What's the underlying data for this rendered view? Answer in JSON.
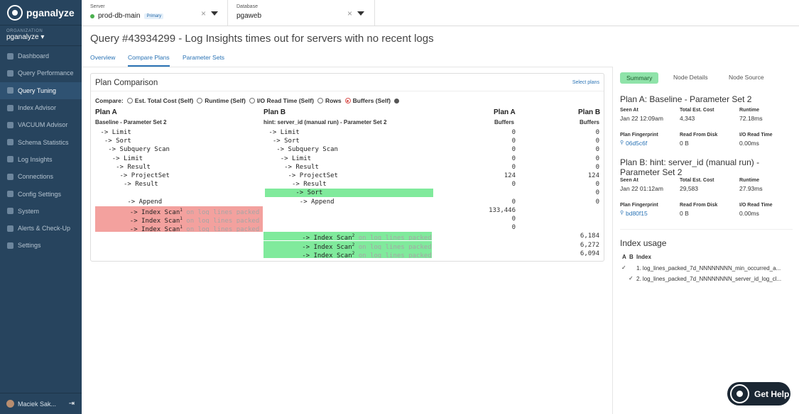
{
  "app": {
    "name": "pganalyze"
  },
  "org": {
    "label": "ORGANIZATION",
    "value": "pganalyze"
  },
  "nav": [
    "Dashboard",
    "Query Performance",
    "Query Tuning",
    "Index Advisor",
    "VACUUM Advisor",
    "Schema Statistics",
    "Log Insights",
    "Connections",
    "Config Settings",
    "System",
    "Alerts & Check-Up",
    "Settings"
  ],
  "user": {
    "name": "Maciek Sak..."
  },
  "server": {
    "label": "Server",
    "value": "prod-db-main",
    "badge": "Primary",
    "status_color": "#4bb04f"
  },
  "database": {
    "label": "Database",
    "value": "pgaweb"
  },
  "page": {
    "title": "Query #43934299 - Log Insights times out for servers with no recent logs"
  },
  "tabs": [
    "Overview",
    "Compare Plans",
    "Parameter Sets"
  ],
  "card": {
    "title": "Plan Comparison",
    "select_plans": "Select plans"
  },
  "compare": {
    "label": "Compare:",
    "options": [
      "Est. Total Cost (Self)",
      "Runtime (Self)",
      "I/O Read Time (Self)",
      "Rows",
      "Buffers (Self)"
    ],
    "selected": "Buffers (Self)"
  },
  "planA": {
    "header": "Plan A",
    "sub": "Baseline - Parameter Set 2"
  },
  "planB": {
    "header": "Plan B",
    "sub": "hint: server_id (manual run) - Parameter Set 2"
  },
  "numcols": {
    "a": "Plan A",
    "b": "Plan B",
    "sub": "Buffers"
  },
  "index_name": "log_lines_packed_7d",
  "on_word": "on",
  "arrow": "->",
  "plan_a_rows": [
    {
      "indent": 0,
      "node": "Limit",
      "a": "0",
      "b": "0"
    },
    {
      "indent": 1,
      "node": "Sort",
      "a": "0",
      "b": "0"
    },
    {
      "indent": 2,
      "node": "Subquery Scan",
      "a": "0",
      "b": "0"
    },
    {
      "indent": 3,
      "node": "Limit",
      "a": "0",
      "b": "0"
    },
    {
      "indent": 4,
      "node": "Result",
      "a": "0",
      "b": "0"
    },
    {
      "indent": 5,
      "node": "ProjectSet",
      "a": "124",
      "b": "124"
    },
    {
      "indent": 6,
      "node": "Result",
      "a": "0",
      "b": "0"
    }
  ],
  "plan_b_sort": {
    "node": "Sort",
    "b": "0"
  },
  "append": {
    "node": "Append",
    "a": "0",
    "b": "0"
  },
  "plan_a_scans": [
    {
      "node": "Index Scan",
      "sup": "1",
      "a": "133,446"
    },
    {
      "node": "Index Scan",
      "sup": "1",
      "a": "0"
    },
    {
      "node": "Index Scan",
      "sup": "1",
      "a": "0"
    }
  ],
  "plan_b_scans": [
    {
      "node": "Index Scan",
      "sup": "2",
      "b": "6,184"
    },
    {
      "node": "Index Scan",
      "sup": "2",
      "b": "6,272"
    },
    {
      "node": "Index Scan",
      "sup": "2",
      "b": "6,094"
    }
  ],
  "right": {
    "tabs": [
      "Summary",
      "Node Details",
      "Node Source"
    ],
    "metric_labels": [
      "Seen At",
      "Total Est. Cost",
      "Runtime",
      "Plan Fingerprint",
      "Read From Disk",
      "I/O Read Time"
    ],
    "planA": {
      "title": "Plan A: Baseline - Parameter Set 2",
      "seen_at": "Jan 22 12:09am",
      "cost": "4,343",
      "runtime": "72.18ms",
      "fingerprint": "06d5c6f",
      "read_disk": "0 B",
      "io_time": "0.00ms"
    },
    "planB": {
      "title": "Plan B: hint: server_id (manual run) - Parameter Set 2",
      "seen_at": "Jan 22 01:12am",
      "cost": "29,583",
      "runtime": "27.93ms",
      "fingerprint": "bd80f15",
      "read_disk": "0 B",
      "io_time": "0.00ms"
    },
    "index_usage": {
      "title": "Index usage",
      "cols": [
        "A",
        "B",
        "Index"
      ],
      "items": [
        "1. log_lines_packed_7d_NNNNNNNN_min_occurred_a...",
        "2. log_lines_packed_7d_NNNNNNNN_server_id_log_cl..."
      ]
    }
  },
  "help": {
    "label": "Get Help"
  }
}
